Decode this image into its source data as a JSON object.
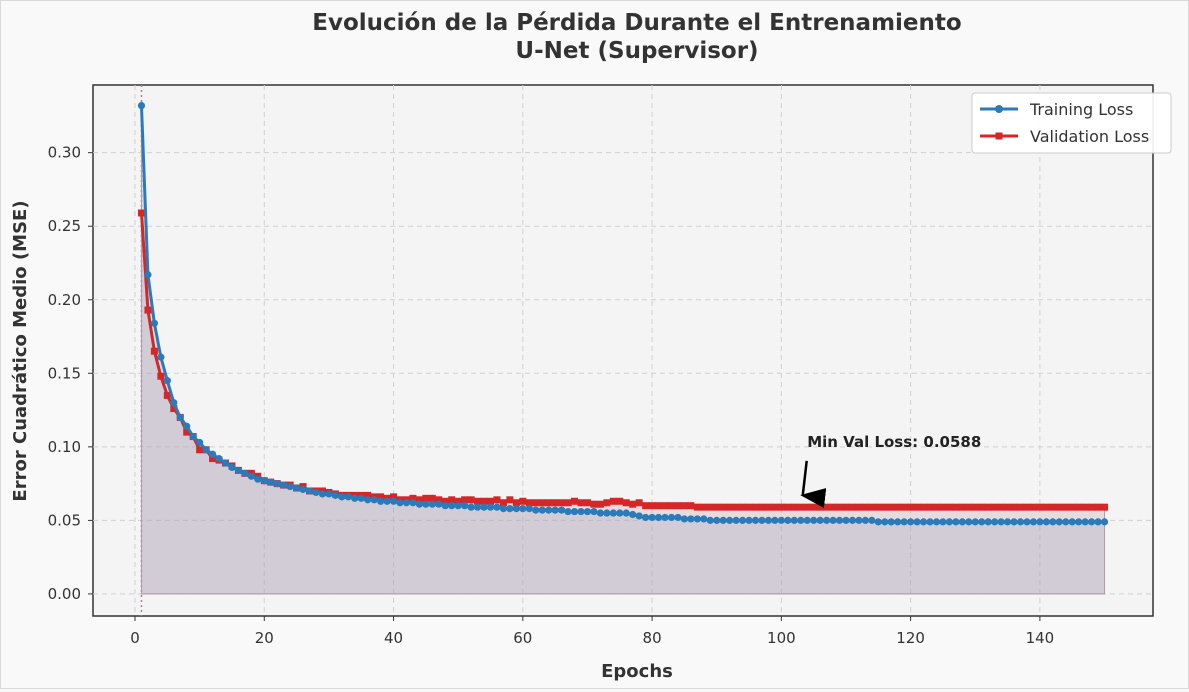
{
  "chart_data": {
    "type": "line",
    "title_line1": "Evolución de la Pérdida Durante el Entrenamiento",
    "title_line2": "U-Net (Supervisor)",
    "xlabel": "Epochs",
    "ylabel": "Error Cuadrático Medio (MSE)",
    "xlim": [
      -6.5,
      157.5
    ],
    "ylim": [
      -0.015,
      0.346
    ],
    "xticks": [
      0,
      20,
      40,
      60,
      80,
      100,
      120,
      140
    ],
    "yticks": [
      0.0,
      0.05,
      0.1,
      0.15,
      0.2,
      0.25,
      0.3
    ],
    "ytick_labels": [
      "0.00",
      "0.05",
      "0.10",
      "0.15",
      "0.20",
      "0.25",
      "0.30"
    ],
    "grid": true,
    "legend_position": "upper right",
    "series": [
      {
        "name": "Training Loss",
        "color": "#2b7bba",
        "marker": "circle",
        "x_start": 1,
        "values": [
          0.332,
          0.217,
          0.184,
          0.161,
          0.145,
          0.13,
          0.12,
          0.114,
          0.107,
          0.103,
          0.098,
          0.095,
          0.092,
          0.089,
          0.086,
          0.084,
          0.082,
          0.08,
          0.078,
          0.077,
          0.076,
          0.075,
          0.074,
          0.073,
          0.072,
          0.071,
          0.07,
          0.069,
          0.068,
          0.068,
          0.067,
          0.066,
          0.066,
          0.065,
          0.065,
          0.064,
          0.064,
          0.063,
          0.063,
          0.063,
          0.062,
          0.062,
          0.062,
          0.061,
          0.061,
          0.061,
          0.061,
          0.06,
          0.06,
          0.06,
          0.06,
          0.059,
          0.059,
          0.059,
          0.059,
          0.059,
          0.058,
          0.058,
          0.058,
          0.058,
          0.058,
          0.057,
          0.057,
          0.057,
          0.057,
          0.057,
          0.056,
          0.056,
          0.056,
          0.056,
          0.056,
          0.055,
          0.055,
          0.055,
          0.055,
          0.055,
          0.054,
          0.053,
          0.052,
          0.052,
          0.052,
          0.052,
          0.052,
          0.052,
          0.051,
          0.051,
          0.051,
          0.051,
          0.05,
          0.05,
          0.05,
          0.05,
          0.05,
          0.05,
          0.05,
          0.05,
          0.05,
          0.05,
          0.05,
          0.05,
          0.05,
          0.05,
          0.05,
          0.05,
          0.05,
          0.05,
          0.05,
          0.05,
          0.05,
          0.05,
          0.05,
          0.05,
          0.05,
          0.05,
          0.049,
          0.049,
          0.049,
          0.049,
          0.049,
          0.049,
          0.049,
          0.049,
          0.049,
          0.049,
          0.049,
          0.049,
          0.049,
          0.049,
          0.049,
          0.049,
          0.049,
          0.049,
          0.049,
          0.049,
          0.049,
          0.049,
          0.049,
          0.049,
          0.049,
          0.049,
          0.049,
          0.049,
          0.049,
          0.049,
          0.049,
          0.049,
          0.049,
          0.049,
          0.049,
          0.049
        ]
      },
      {
        "name": "Validation Loss",
        "color": "#d62728",
        "marker": "square",
        "x_start": 1,
        "values": [
          0.259,
          0.193,
          0.165,
          0.148,
          0.135,
          0.126,
          0.12,
          0.11,
          0.107,
          0.098,
          0.098,
          0.092,
          0.091,
          0.089,
          0.087,
          0.084,
          0.082,
          0.082,
          0.08,
          0.077,
          0.076,
          0.075,
          0.074,
          0.074,
          0.072,
          0.073,
          0.07,
          0.07,
          0.07,
          0.069,
          0.068,
          0.067,
          0.067,
          0.067,
          0.067,
          0.067,
          0.066,
          0.066,
          0.065,
          0.066,
          0.064,
          0.064,
          0.065,
          0.064,
          0.065,
          0.065,
          0.064,
          0.063,
          0.064,
          0.063,
          0.064,
          0.064,
          0.063,
          0.063,
          0.063,
          0.064,
          0.062,
          0.064,
          0.062,
          0.063,
          0.062,
          0.062,
          0.062,
          0.062,
          0.062,
          0.062,
          0.062,
          0.063,
          0.062,
          0.062,
          0.061,
          0.061,
          0.062,
          0.063,
          0.063,
          0.062,
          0.061,
          0.062,
          0.06,
          0.06,
          0.06,
          0.06,
          0.06,
          0.06,
          0.06,
          0.06,
          0.059,
          0.059,
          0.059,
          0.059,
          0.059,
          0.059,
          0.059,
          0.059,
          0.059,
          0.059,
          0.059,
          0.059,
          0.059,
          0.059,
          0.059,
          0.059,
          0.059,
          0.059,
          0.059,
          0.059,
          0.059,
          0.059,
          0.059,
          0.059,
          0.059,
          0.059,
          0.059,
          0.059,
          0.059,
          0.059,
          0.059,
          0.059,
          0.059,
          0.059,
          0.059,
          0.059,
          0.059,
          0.059,
          0.059,
          0.059,
          0.059,
          0.059,
          0.059,
          0.059,
          0.059,
          0.059,
          0.059,
          0.059,
          0.059,
          0.059,
          0.059,
          0.059,
          0.059,
          0.059,
          0.059,
          0.059,
          0.059,
          0.059,
          0.059,
          0.059,
          0.059,
          0.059,
          0.059,
          0.059
        ]
      }
    ],
    "annotation": {
      "text": "Min Val Loss: 0.0588",
      "x": 103,
      "y": 0.0588,
      "text_x": 104,
      "text_y": 0.1
    },
    "best_epoch_line_x": 1
  }
}
